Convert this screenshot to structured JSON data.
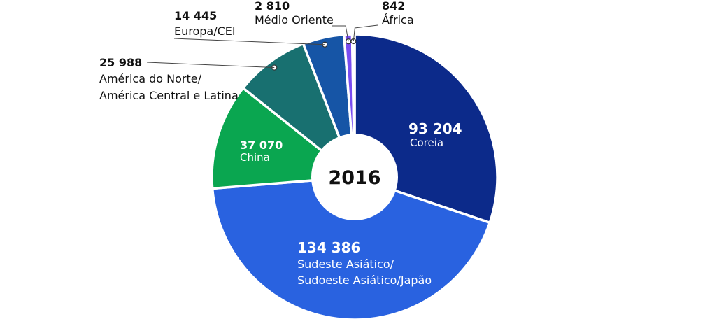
{
  "chart_data": {
    "type": "pie",
    "center_label": "2016",
    "slices": [
      {
        "value": 93204,
        "value_label": "93 204",
        "label_lines": [
          "Coreia"
        ],
        "color": "#0c2a8a"
      },
      {
        "value": 134386,
        "value_label": "134 386",
        "label_lines": [
          "Sudeste Asiático/",
          "Sudoeste Asiático/Japão"
        ],
        "color": "#2962e0"
      },
      {
        "value": 37070,
        "value_label": "37 070",
        "label_lines": [
          "China"
        ],
        "color": "#0aa650"
      },
      {
        "value": 25988,
        "value_label": "25 988",
        "label_lines": [
          "América do Norte/",
          "América Central e Latina"
        ],
        "color": "#187070"
      },
      {
        "value": 14445,
        "value_label": "14 445",
        "label_lines": [
          "Europa/CEI"
        ],
        "color": "#1655a6"
      },
      {
        "value": 2810,
        "value_label": "2 810",
        "label_lines": [
          "Médio Oriente"
        ],
        "color": "#7a4cf0"
      },
      {
        "value": 842,
        "value_label": "842",
        "label_lines": [
          "África"
        ],
        "color": "#3a86c8"
      }
    ]
  }
}
